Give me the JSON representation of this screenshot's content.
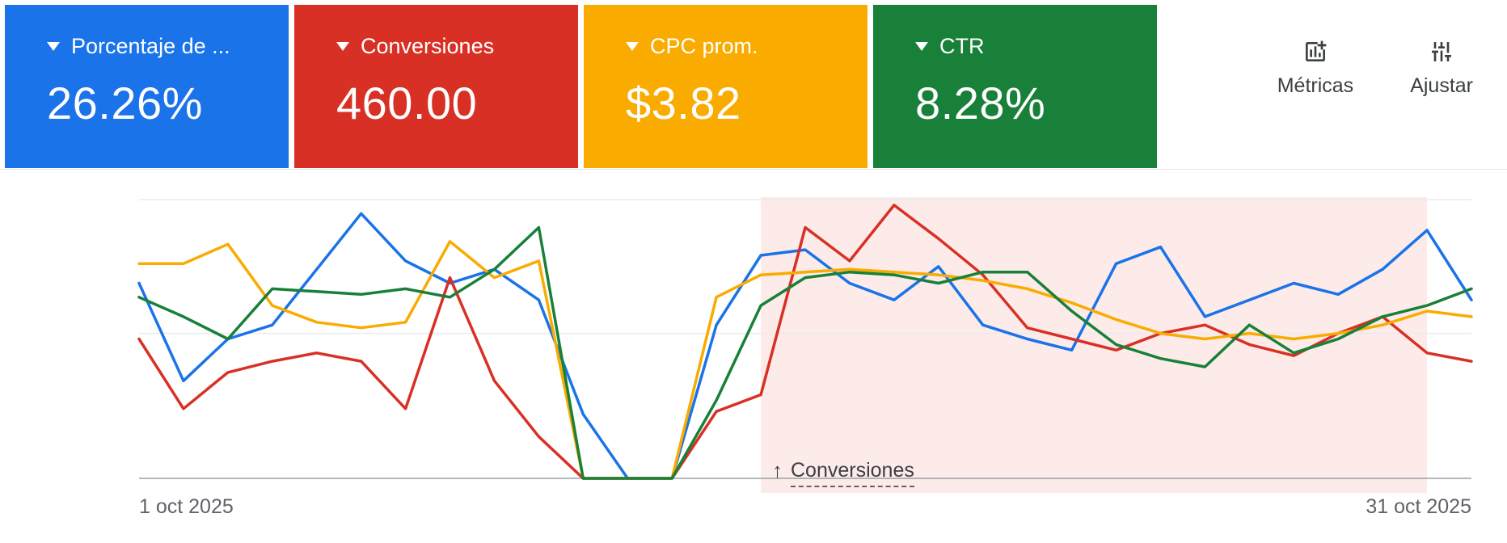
{
  "metric_cards": [
    {
      "label": "Porcentaje de ...",
      "value": "26.26%",
      "color": "#1a73e8"
    },
    {
      "label": "Conversiones",
      "value": "460.00",
      "color": "#d93025"
    },
    {
      "label": "CPC prom.",
      "value": "$3.82",
      "color": "#f9ab00"
    },
    {
      "label": "CTR",
      "value": "8.28%",
      "color": "#188038"
    }
  ],
  "toolbar": {
    "metrics_label": "Métricas",
    "adjust_label": "Ajustar"
  },
  "icons": {
    "card_dropdown": "triangle-down",
    "metrics_button": "add-chart",
    "adjust_button": "tune-sliders",
    "annotation": "arrow-up"
  },
  "chart": {
    "start_date_label": "1 oct 2025",
    "end_date_label": "31 oct 2025",
    "annotation_arrow": "↑",
    "annotation_label": "Conversiones"
  },
  "chart_data": {
    "type": "line",
    "x": [
      1,
      2,
      3,
      4,
      5,
      6,
      7,
      8,
      9,
      10,
      11,
      12,
      13,
      14,
      15,
      16,
      17,
      18,
      19,
      20,
      21,
      22,
      23,
      24,
      25,
      26,
      27,
      28,
      29,
      30,
      31
    ],
    "x_unit": "day of October 2025",
    "xlabels": {
      "start": "1 oct 2025",
      "end": "31 oct 2025"
    },
    "ylim": [
      0,
      100
    ],
    "y_note": "y-axis unlabeled in UI; values estimated on 0-100 scale of plot height",
    "gridlines": [
      52,
      100
    ],
    "grid": "horizontal only",
    "legend": "none (line colors match metric cards)",
    "highlight_region": {
      "start_day": 15,
      "end_day": 30,
      "color": "#fcebe9",
      "label": "Conversiones"
    },
    "series": [
      {
        "name": "Porcentaje de ...",
        "color": "#1a73e8",
        "values": [
          70,
          35,
          50,
          55,
          75,
          95,
          78,
          70,
          75,
          64,
          23,
          0,
          0,
          55,
          80,
          82,
          70,
          64,
          76,
          55,
          50,
          46,
          77,
          83,
          58,
          64,
          70,
          66,
          75,
          89,
          64
        ]
      },
      {
        "name": "Conversiones",
        "color": "#d93025",
        "values": [
          50,
          25,
          38,
          42,
          45,
          42,
          25,
          72,
          35,
          15,
          0,
          0,
          0,
          24,
          30,
          90,
          78,
          98,
          86,
          73,
          54,
          50,
          46,
          52,
          55,
          48,
          44,
          52,
          58,
          45,
          42
        ]
      },
      {
        "name": "CPC prom.",
        "color": "#f9ab00",
        "values": [
          77,
          77,
          84,
          62,
          56,
          54,
          56,
          85,
          72,
          78,
          0,
          0,
          0,
          65,
          73,
          74,
          75,
          74,
          73,
          71,
          68,
          63,
          57,
          52,
          50,
          52,
          50,
          52,
          55,
          60,
          58
        ]
      },
      {
        "name": "CTR",
        "color": "#188038",
        "values": [
          65,
          58,
          50,
          68,
          67,
          66,
          68,
          65,
          75,
          90,
          0,
          0,
          0,
          28,
          62,
          72,
          74,
          73,
          70,
          74,
          74,
          60,
          48,
          43,
          40,
          55,
          45,
          50,
          58,
          62,
          68
        ]
      }
    ]
  }
}
